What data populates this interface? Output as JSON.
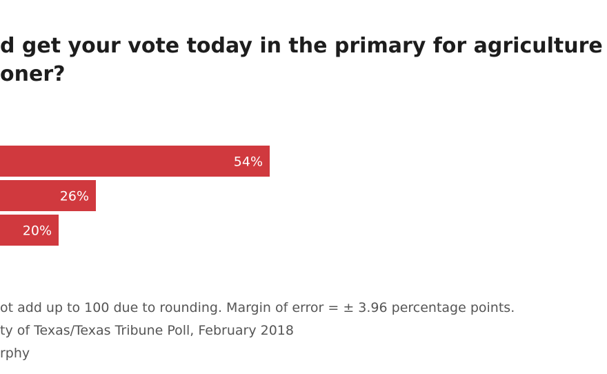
{
  "header": {
    "title_line1": "d get your vote today in the primary for agriculture",
    "title_line2": "oner?"
  },
  "chart_data": {
    "type": "bar",
    "orientation": "horizontal",
    "categories": [
      "",
      "",
      ""
    ],
    "values": [
      54,
      26,
      20
    ],
    "value_labels": [
      "54%",
      "26%",
      "20%"
    ],
    "unit": "%",
    "xlim": [
      0,
      100
    ],
    "bar_color": "#d0393e",
    "grid": false,
    "legend": "none"
  },
  "footer": {
    "note": "ot add up to 100 due to rounding. Margin of error = ± 3.96 percentage points.",
    "source": "ty of Texas/Texas Tribune Poll, February 2018",
    "credit": "rphy"
  }
}
